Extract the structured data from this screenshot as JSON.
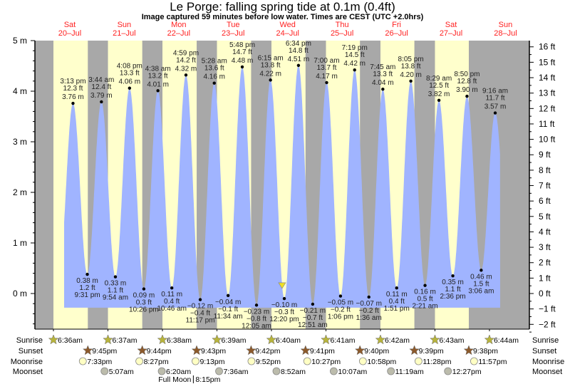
{
  "title": "Le Porge: falling  spring tide at 0.1m (0.4ft)",
  "subtitle": "Image captured 59 minutes before low water. Times are CEST (UTC +2.0hrs)",
  "colors": {
    "night": "#a8a8a8",
    "day": "#ffffcc",
    "water": "#a0b4ff",
    "day_label": "#ff2020",
    "sunrise": "#b8b43c",
    "sunset": "#8c5a2c",
    "moonrise": "#ffffc4",
    "moonset": "#bcbcac"
  },
  "chart_data": {
    "type": "area",
    "ylim": [
      -0.7,
      5
    ],
    "left_ticks": [
      {
        "v": 5,
        "label": "5 m"
      },
      {
        "v": 4,
        "label": "4 m"
      },
      {
        "v": 3,
        "label": "3 m"
      },
      {
        "v": 2,
        "label": "2 m"
      },
      {
        "v": 1,
        "label": "1 m"
      },
      {
        "v": 0,
        "label": "0 m"
      }
    ],
    "right_ticks": [
      "16 ft",
      "15 ft",
      "14 ft",
      "13 ft",
      "12 ft",
      "11 ft",
      "10 ft",
      "9 ft",
      "8 ft",
      "7 ft",
      "6 ft",
      "5 ft",
      "4 ft",
      "3 ft",
      "2 ft",
      "1 ft",
      "0 ft",
      "−1 ft",
      "−2 ft"
    ],
    "days": [
      {
        "name": "Sat",
        "date": "20–Jul"
      },
      {
        "name": "Sun",
        "date": "21–Jul"
      },
      {
        "name": "Mon",
        "date": "22–Jul"
      },
      {
        "name": "Tue",
        "date": "23–Jul"
      },
      {
        "name": "Wed",
        "date": "24–Jul"
      },
      {
        "name": "Thu",
        "date": "25–Jul"
      },
      {
        "name": "Fri",
        "date": "26–Jul"
      },
      {
        "name": "Sat",
        "date": "27–Jul"
      },
      {
        "name": "Sun",
        "date": "28–Jul"
      }
    ],
    "extremes": [
      {
        "type": "high",
        "day": 0,
        "time": "3:13 pm",
        "ft": "12.3 ft",
        "m": "3.76 m",
        "value": 3.76
      },
      {
        "type": "low",
        "day": 0,
        "time": "9:31 pm",
        "ft": "1.2 ft",
        "m": "0.38 m",
        "value": 0.38
      },
      {
        "type": "high",
        "day": 1,
        "time": "3:44 am",
        "ft": "12.4 ft",
        "m": "3.79 m",
        "value": 3.79
      },
      {
        "type": "low",
        "day": 1,
        "time": "9:54 am",
        "ft": "1.1 ft",
        "m": "0.33 m",
        "value": 0.33
      },
      {
        "type": "high",
        "day": 1,
        "time": "4:08 pm",
        "ft": "13.3 ft",
        "m": "4.06 m",
        "value": 4.06
      },
      {
        "type": "low",
        "day": 1,
        "time": "10:26 pm",
        "ft": "0.3 ft",
        "m": "0.09 m",
        "value": 0.09
      },
      {
        "type": "high",
        "day": 2,
        "time": "4:38 am",
        "ft": "13.2 ft",
        "m": "4.01 m",
        "value": 4.01
      },
      {
        "type": "low",
        "day": 2,
        "time": "10:46 am",
        "ft": "0.4 ft",
        "m": "0.11 m",
        "value": 0.11
      },
      {
        "type": "high",
        "day": 2,
        "time": "4:59 pm",
        "ft": "14.2 ft",
        "m": "4.32 m",
        "value": 4.32
      },
      {
        "type": "low",
        "day": 2,
        "time": "11:17 pm",
        "ft": "−0.4 ft",
        "m": "−0.12 m",
        "value": -0.12
      },
      {
        "type": "high",
        "day": 3,
        "time": "5:28 am",
        "ft": "13.6 ft",
        "m": "4.16 m",
        "value": 4.16
      },
      {
        "type": "low",
        "day": 3,
        "time": "11:34 am",
        "ft": "−0.1 ft",
        "m": "−0.04 m",
        "value": -0.04
      },
      {
        "type": "high",
        "day": 3,
        "time": "5:48 pm",
        "ft": "14.7 ft",
        "m": "4.48 m",
        "value": 4.48
      },
      {
        "type": "low",
        "day": 4,
        "time": "12:05 am",
        "ft": "−0.8 ft",
        "m": "−0.23 m",
        "value": -0.23
      },
      {
        "type": "high",
        "day": 4,
        "time": "6:15 am",
        "ft": "13.8 ft",
        "m": "4.22 m",
        "value": 4.22
      },
      {
        "type": "low",
        "day": 4,
        "time": "12:20 pm",
        "ft": "−0.3 ft",
        "m": "−0.10 m",
        "value": -0.1
      },
      {
        "type": "high",
        "day": 4,
        "time": "6:34 pm",
        "ft": "14.8 ft",
        "m": "4.51 m",
        "value": 4.51
      },
      {
        "type": "low",
        "day": 5,
        "time": "12:51 am",
        "ft": "−0.7 ft",
        "m": "−0.21 m",
        "value": -0.21
      },
      {
        "type": "high",
        "day": 5,
        "time": "7:00 am",
        "ft": "13.7 ft",
        "m": "4.17 m",
        "value": 4.17
      },
      {
        "type": "low",
        "day": 5,
        "time": "1:06 pm",
        "ft": "−0.2 ft",
        "m": "−0.05 m",
        "value": -0.05
      },
      {
        "type": "high",
        "day": 5,
        "time": "7:19 pm",
        "ft": "14.5 ft",
        "m": "4.42 m",
        "value": 4.42
      },
      {
        "type": "low",
        "day": 6,
        "time": "1:36 am",
        "ft": "−0.2 ft",
        "m": "−0.07 m",
        "value": -0.07
      },
      {
        "type": "high",
        "day": 6,
        "time": "7:45 am",
        "ft": "13.3 ft",
        "m": "4.04 m",
        "value": 4.04
      },
      {
        "type": "low",
        "day": 6,
        "time": "1:51 pm",
        "ft": "0.4 ft",
        "m": "0.11 m",
        "value": 0.11
      },
      {
        "type": "high",
        "day": 6,
        "time": "8:05 pm",
        "ft": "13.8 ft",
        "m": "4.20 m",
        "value": 4.2
      },
      {
        "type": "low",
        "day": 7,
        "time": "2:21 am",
        "ft": "0.5 ft",
        "m": "0.16 m",
        "value": 0.16
      },
      {
        "type": "high",
        "day": 7,
        "time": "8:29 am",
        "ft": "12.5 ft",
        "m": "3.82 m",
        "value": 3.82
      },
      {
        "type": "low",
        "day": 7,
        "time": "2:36 pm",
        "ft": "1.1 ft",
        "m": "0.35 m",
        "value": 0.35
      },
      {
        "type": "high",
        "day": 7,
        "time": "8:50 pm",
        "ft": "12.8 ft",
        "m": "3.90 m",
        "value": 3.9
      },
      {
        "type": "low",
        "day": 8,
        "time": "3:06 am",
        "ft": "1.5 ft",
        "m": "0.46 m",
        "value": 0.46
      },
      {
        "type": "high",
        "day": 8,
        "time": "9:16 am",
        "ft": "11.7 ft",
        "m": "3.57 m",
        "value": 3.57
      }
    ],
    "now_marker": {
      "day": 4,
      "time": "11:21 am",
      "level_m": 0.1
    },
    "almanac": {
      "labels": {
        "sunrise": "Sunrise",
        "sunset": "Sunset",
        "moonrise": "Moonrise",
        "moonset": "Moonset"
      },
      "sunrise": [
        {
          "day": 0,
          "time": "6:36am"
        },
        {
          "day": 1,
          "time": "6:37am"
        },
        {
          "day": 2,
          "time": "6:38am"
        },
        {
          "day": 3,
          "time": "6:39am"
        },
        {
          "day": 4,
          "time": "6:40am"
        },
        {
          "day": 5,
          "time": "6:41am"
        },
        {
          "day": 6,
          "time": "6:42am"
        },
        {
          "day": 7,
          "time": "6:43am"
        },
        {
          "day": 8,
          "time": "6:44am"
        }
      ],
      "sunset": [
        {
          "day": 0,
          "time": "9:45pm"
        },
        {
          "day": 1,
          "time": "9:44pm"
        },
        {
          "day": 2,
          "time": "9:43pm"
        },
        {
          "day": 3,
          "time": "9:42pm"
        },
        {
          "day": 4,
          "time": "9:41pm"
        },
        {
          "day": 5,
          "time": "9:40pm"
        },
        {
          "day": 6,
          "time": "9:39pm"
        },
        {
          "day": 7,
          "time": "9:38pm"
        }
      ],
      "moonrise": [
        {
          "day": 0,
          "time": "7:33pm"
        },
        {
          "day": 1,
          "time": "8:27pm"
        },
        {
          "day": 2,
          "time": "9:13pm"
        },
        {
          "day": 3,
          "time": "9:52pm"
        },
        {
          "day": 4,
          "time": "10:27pm"
        },
        {
          "day": 5,
          "time": "10:58pm"
        },
        {
          "day": 6,
          "time": "11:28pm"
        },
        {
          "day": 7,
          "time": "11:57pm"
        }
      ],
      "moonset": [
        {
          "day": 1,
          "time": "5:07am"
        },
        {
          "day": 2,
          "time": "6:20am"
        },
        {
          "day": 3,
          "time": "7:36am"
        },
        {
          "day": 4,
          "time": "8:52am"
        },
        {
          "day": 5,
          "time": "10:07am"
        },
        {
          "day": 6,
          "time": "11:19am"
        },
        {
          "day": 7,
          "time": "12:27pm"
        }
      ],
      "full_moon": {
        "label": "Full Moon",
        "day": 2,
        "time": "8:15pm"
      }
    }
  }
}
